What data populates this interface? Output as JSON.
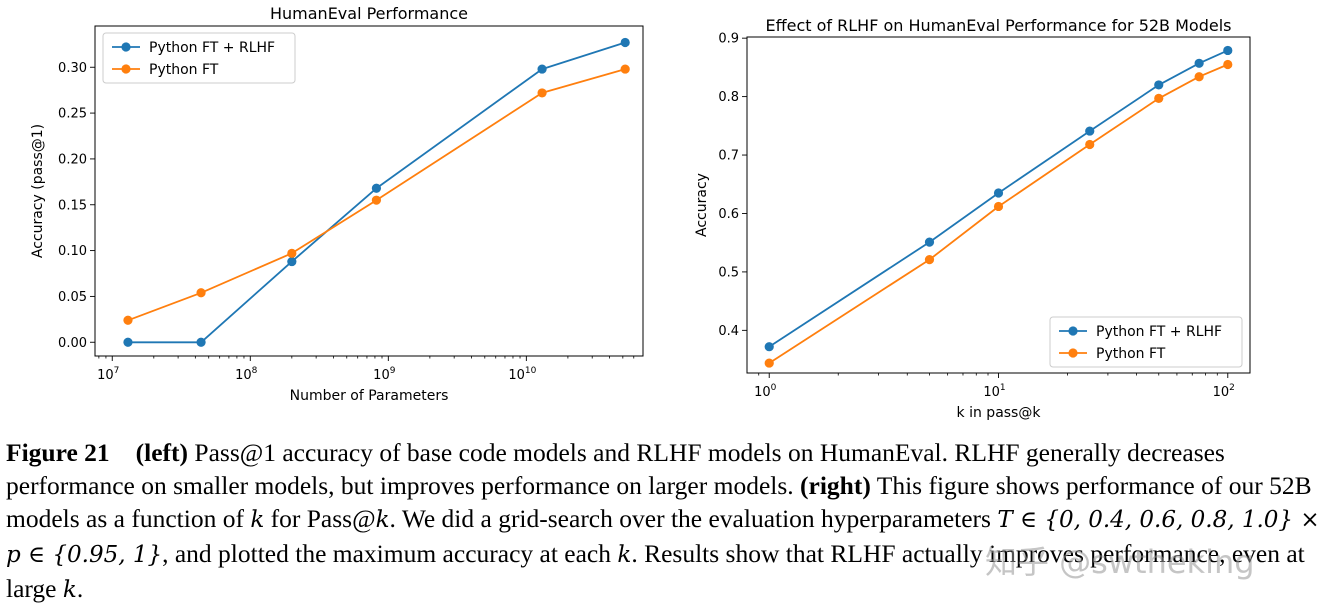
{
  "chart_data": [
    {
      "type": "line",
      "title": "HumanEval Performance",
      "xlabel": "Number of Parameters",
      "ylabel": "Accuracy (pass@1)",
      "xscale": "log",
      "xlim": [
        7500000.0,
        70000000000.0
      ],
      "ylim": [
        -0.015,
        0.345
      ],
      "xticks": [
        {
          "value": 10000000.0,
          "base": "10",
          "exp": "7"
        },
        {
          "value": 100000000.0,
          "base": "10",
          "exp": "8"
        },
        {
          "value": 1000000000.0,
          "base": "10",
          "exp": "9"
        },
        {
          "value": 10000000000.0,
          "base": "10",
          "exp": "10"
        }
      ],
      "yticks": [
        {
          "value": 0.0,
          "label": "0.00"
        },
        {
          "value": 0.05,
          "label": "0.05"
        },
        {
          "value": 0.1,
          "label": "0.10"
        },
        {
          "value": 0.15,
          "label": "0.15"
        },
        {
          "value": 0.2,
          "label": "0.20"
        },
        {
          "value": 0.25,
          "label": "0.25"
        },
        {
          "value": 0.3,
          "label": "0.30"
        }
      ],
      "legend_position": "top-left",
      "grid": false,
      "series": [
        {
          "name": "Python FT + RLHF",
          "color": "#1f77b4",
          "x": [
            13000000.0,
            44000000.0,
            200000000.0,
            820000000.0,
            13000000000.0,
            52000000000.0
          ],
          "y": [
            0.0,
            0.0,
            0.088,
            0.168,
            0.298,
            0.327
          ]
        },
        {
          "name": "Python FT",
          "color": "#ff7f0e",
          "x": [
            13000000.0,
            44000000.0,
            200000000.0,
            820000000.0,
            13000000000.0,
            52000000000.0
          ],
          "y": [
            0.024,
            0.054,
            0.097,
            0.155,
            0.272,
            0.298
          ]
        }
      ]
    },
    {
      "type": "line",
      "title": "Effect of RLHF on HumanEval Performance for 52B Models",
      "xlabel": "k in pass@k",
      "ylabel": "Accuracy",
      "xscale": "log",
      "xlim": [
        0.8,
        125
      ],
      "ylim": [
        0.327,
        0.902
      ],
      "xticks": [
        {
          "value": 1,
          "base": "10",
          "exp": "0"
        },
        {
          "value": 10,
          "base": "10",
          "exp": "1"
        },
        {
          "value": 100,
          "base": "10",
          "exp": "2"
        }
      ],
      "yticks": [
        {
          "value": 0.4,
          "label": "0.4"
        },
        {
          "value": 0.5,
          "label": "0.5"
        },
        {
          "value": 0.6,
          "label": "0.6"
        },
        {
          "value": 0.7,
          "label": "0.7"
        },
        {
          "value": 0.8,
          "label": "0.8"
        },
        {
          "value": 0.9,
          "label": "0.9"
        }
      ],
      "legend_position": "lower-right",
      "grid": false,
      "series": [
        {
          "name": "Python FT + RLHF",
          "color": "#1f77b4",
          "x": [
            1,
            5,
            10,
            25,
            50,
            75,
            100
          ],
          "y": [
            0.372,
            0.551,
            0.635,
            0.741,
            0.82,
            0.857,
            0.879
          ]
        },
        {
          "name": "Python FT",
          "color": "#ff7f0e",
          "x": [
            1,
            5,
            10,
            25,
            50,
            75,
            100
          ],
          "y": [
            0.344,
            0.521,
            0.612,
            0.718,
            0.797,
            0.834,
            0.855
          ]
        }
      ]
    }
  ],
  "caption": {
    "figure_label": "Figure 21",
    "left_label": "(left)",
    "sentence_a": "Pass@1 accuracy of base code models and RLHF models on HumanEval. RLHF generally decreases performance on smaller models, but improves performance on larger models.",
    "right_label": "(right)",
    "sentence_b_pre": "This figure shows performance of our 52B models as a function of",
    "k1": "k",
    "sentence_b_mid": "for Pass@",
    "k2": "k",
    "sentence_c_pre": ". We did a grid-search over the evaluation hyperparameters",
    "T_math": "T ∈ {0, 0.4, 0.6, 0.8, 1.0} × p ∈ {0.95, 1}",
    "sentence_c_post": ", and plotted the maximum accuracy at each",
    "k3": "k",
    "sentence_d_pre": ". Results show that RLHF actually improves performance, even at large",
    "k4": "k",
    "end": "."
  },
  "watermark": "知乎 @swtheking"
}
